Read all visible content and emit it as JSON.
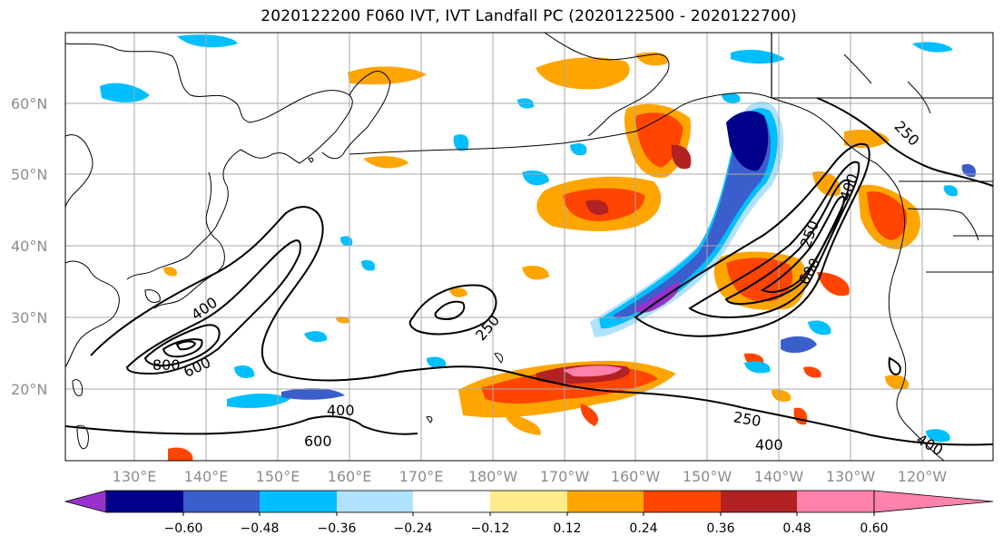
{
  "title": "2020122200 F060 IVT, IVT Landfall PC (2020122500 - 2020122700)",
  "lat_labels": [
    "60°N",
    "50°N",
    "40°N",
    "30°N",
    "20°N"
  ],
  "lon_labels": [
    "130°E",
    "140°E",
    "150°E",
    "160°E",
    "170°E",
    "180°W",
    "170°W",
    "160°W",
    "150°W",
    "140°W",
    "130°W",
    "120°W"
  ],
  "contour_labels": [
    "400",
    "800",
    "600",
    "250",
    "400",
    "600",
    "250",
    "400",
    "250",
    "600",
    "400",
    "250",
    "400"
  ],
  "colorbar": {
    "colors": [
      "#9932cc",
      "#00008b",
      "#3a5fcd",
      "#00bfff",
      "#b0e2ff",
      "#ffffff",
      "#ffec8b",
      "#ffa500",
      "#ff4500",
      "#b22222",
      "#ff82ab"
    ],
    "tick_labels": [
      "−0.60",
      "−0.48",
      "−0.36",
      "−0.24",
      "−0.12",
      "0.12",
      "0.24",
      "0.36",
      "0.48",
      "0.60"
    ]
  }
}
